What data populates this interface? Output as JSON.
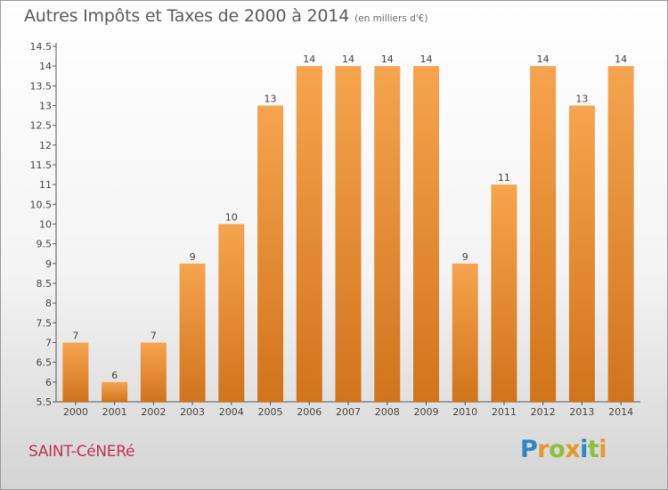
{
  "header": {
    "title": "Autres Impôts et Taxes de 2000 à 2014",
    "unit": "(en milliers d'€)"
  },
  "footer": {
    "town": "SAINT-CéNERé",
    "logo": "Proxiti"
  },
  "colors": {
    "bar_light": "#f6a44e",
    "bar_dark": "#d1741b",
    "axis": "#555555"
  },
  "chart_data": {
    "type": "bar",
    "categories": [
      "2000",
      "2001",
      "2002",
      "2003",
      "2004",
      "2005",
      "2006",
      "2007",
      "2008",
      "2009",
      "2010",
      "2011",
      "2012",
      "2013",
      "2014"
    ],
    "values": [
      7,
      6,
      7,
      9,
      10,
      13,
      14,
      14,
      14,
      14,
      9,
      11,
      14,
      13,
      14
    ],
    "ylim": [
      5.5,
      14.5
    ],
    "yticks": [
      "5.5",
      "6",
      "6.5",
      "7",
      "7.5",
      "8",
      "8.5",
      "9",
      "9.5",
      "10",
      "10.5",
      "11",
      "11.5",
      "12",
      "12.5",
      "13",
      "13.5",
      "14",
      "14.5"
    ],
    "title": "Autres Impôts et Taxes de 2000 à 2014",
    "xlabel": "",
    "ylabel": "",
    "grid": false,
    "data_labels": true
  }
}
